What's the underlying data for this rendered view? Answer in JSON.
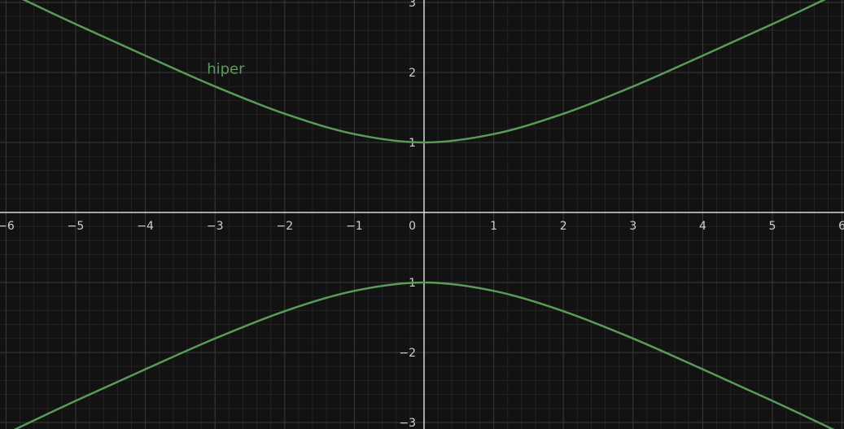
{
  "chart_data": {
    "type": "line",
    "title": "",
    "xlabel": "",
    "ylabel": "",
    "xlim": [
      -6,
      6
    ],
    "ylim": [
      -3,
      3
    ],
    "x_ticks": [
      -6,
      -5,
      -4,
      -3,
      -2,
      -1,
      1,
      2,
      3,
      4,
      5,
      6
    ],
    "y_ticks": [
      -3,
      -2,
      -1,
      1,
      2,
      3
    ],
    "x_tick_labels": [
      "−6",
      "−5",
      "−4",
      "−3",
      "−2",
      "−1",
      "1",
      "2",
      "3",
      "4",
      "5",
      "6"
    ],
    "y_tick_labels": [
      "−3",
      "−2",
      "−1",
      "1",
      "2",
      "3"
    ],
    "origin_label": "0",
    "grid": true,
    "minor_grid": true,
    "series": [
      {
        "name": "hiper",
        "color": "#5a9a5a",
        "equation": "y^2 - x^2/4 = 1",
        "branches": [
          {
            "x": [
              -6,
              -5,
              -4,
              -3,
              -2,
              -1,
              0,
              1,
              2,
              3,
              4,
              5,
              6
            ],
            "y": [
              3.16,
              2.69,
              2.24,
              1.8,
              1.41,
              1.12,
              1,
              1.12,
              1.41,
              1.8,
              2.24,
              2.69,
              3.16
            ]
          },
          {
            "x": [
              -6,
              -5,
              -4,
              -3,
              -2,
              -1,
              0,
              1,
              2,
              3,
              4,
              5,
              6
            ],
            "y": [
              -3.16,
              -2.69,
              -2.24,
              -1.8,
              -1.41,
              -1.12,
              -1,
              -1.12,
              -1.41,
              -1.8,
              -2.24,
              -2.69,
              -3.16
            ]
          }
        ]
      }
    ],
    "annotations": [
      {
        "text": "hiper",
        "x": -3,
        "y": 2.05
      }
    ]
  }
}
